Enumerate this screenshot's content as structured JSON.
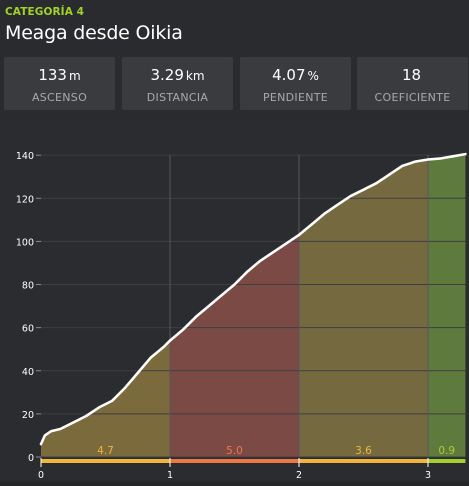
{
  "header": {
    "category": "CATEGORÍA 4",
    "category_color": "#a4d22b",
    "title": "Meaga desde Oikia"
  },
  "stats": [
    {
      "value": "133",
      "unit": "m",
      "label": "ASCENSO"
    },
    {
      "value": "3.29",
      "unit": "km",
      "label": "DISTANCIA"
    },
    {
      "value": "4.07",
      "unit": "%",
      "label": "PENDIENTE"
    },
    {
      "value": "18",
      "unit": "",
      "label": "COEFICIENTE"
    }
  ],
  "chart_data": {
    "type": "area",
    "xlim": [
      0,
      3.29
    ],
    "ylim": [
      0,
      140
    ],
    "x_ticks": [
      0,
      1,
      2,
      3
    ],
    "y_ticks": [
      0,
      20,
      40,
      60,
      80,
      100,
      120,
      140
    ],
    "grid": true,
    "profile": {
      "x": [
        0,
        0.03,
        0.08,
        0.15,
        0.25,
        0.35,
        0.45,
        0.55,
        0.65,
        0.75,
        0.85,
        0.95,
        1.0,
        1.1,
        1.2,
        1.3,
        1.4,
        1.5,
        1.6,
        1.7,
        1.8,
        1.9,
        2.0,
        2.1,
        2.2,
        2.3,
        2.4,
        2.5,
        2.6,
        2.7,
        2.8,
        2.85,
        2.9,
        3.0,
        3.1,
        3.2,
        3.29
      ],
      "y": [
        6,
        10,
        12,
        13,
        16,
        19,
        23,
        26,
        32,
        39,
        46,
        51,
        54,
        59,
        65,
        70,
        75,
        80,
        86,
        91,
        95,
        99,
        103,
        108,
        113,
        117,
        121,
        124,
        127,
        131,
        135,
        136,
        137,
        138,
        138.5,
        139.5,
        140.5
      ]
    },
    "segments": [
      {
        "from": 0,
        "to": 1,
        "gradient": "4.7",
        "fill": "#7b6a3c",
        "bar": "#f1b53b",
        "label_color": "#f1b53b"
      },
      {
        "from": 1,
        "to": 2,
        "gradient": "5.0",
        "fill": "#7c4a44",
        "bar": "#f07744",
        "label_color": "#f07744"
      },
      {
        "from": 2,
        "to": 3,
        "gradient": "3.6",
        "fill": "#756a3f",
        "bar": "#f1b53b",
        "label_color": "#f1b53b"
      },
      {
        "from": 3,
        "to": 3.29,
        "gradient": "0.9",
        "fill": "#5f7a3d",
        "bar": "#a4d22b",
        "label_color": "#a4d22b"
      }
    ]
  }
}
